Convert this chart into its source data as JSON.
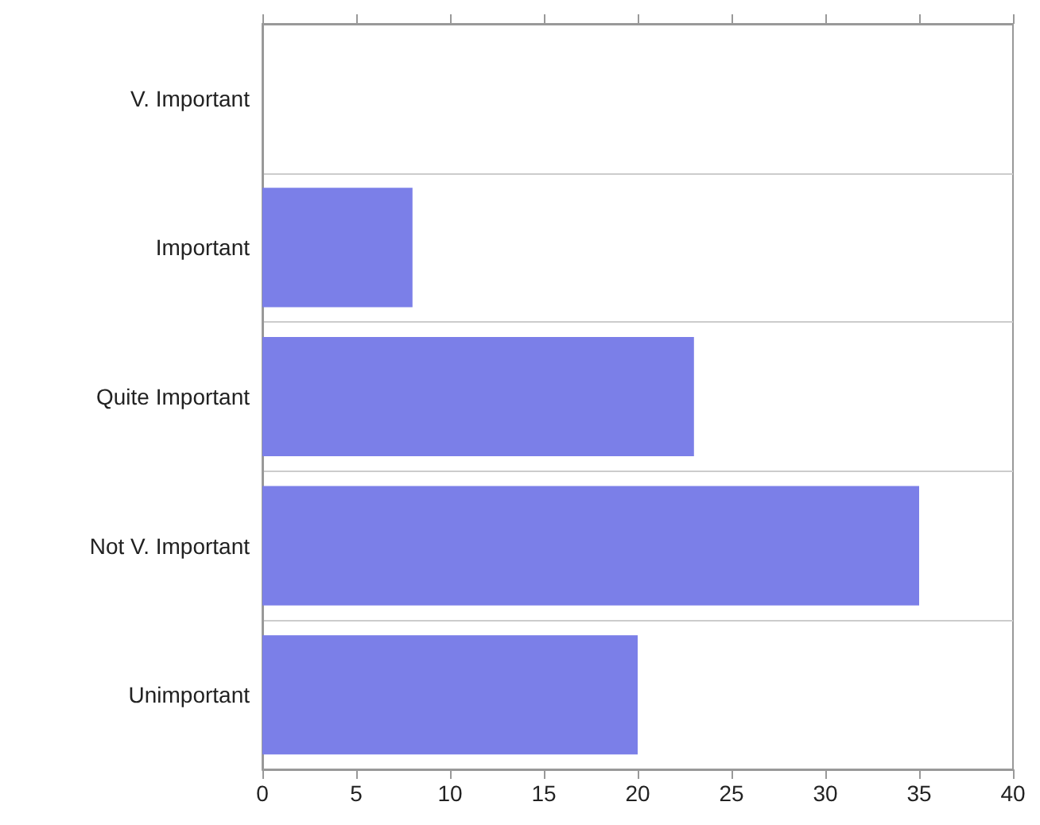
{
  "chart_data": {
    "type": "bar",
    "orientation": "horizontal",
    "categories": [
      "V. Important",
      "Important",
      "Quite Important",
      "Not V. Important",
      "Unimportant"
    ],
    "values": [
      0,
      8,
      23,
      35,
      20
    ],
    "color": "#7b7fe8",
    "xlim": [
      0,
      40
    ],
    "xticks": [
      0,
      5,
      10,
      15,
      20,
      25,
      30,
      35,
      40
    ],
    "grid": "y"
  }
}
